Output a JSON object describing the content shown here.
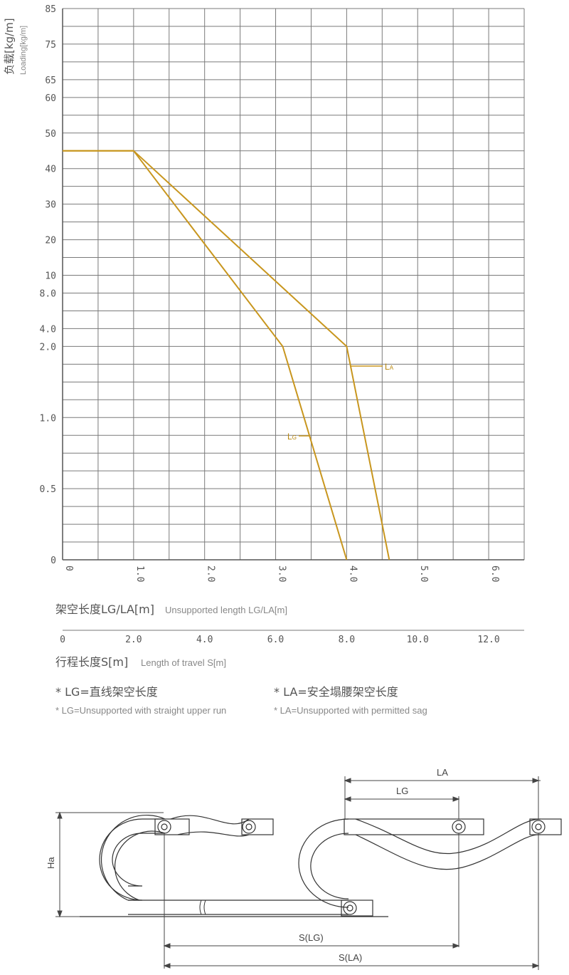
{
  "chart_data": {
    "type": "line",
    "ylabel_cn": "负载[kg/m]",
    "ylabel_en": "Loading[kg/m]",
    "yticks": [
      "0",
      "0.5",
      "1.0",
      "2.0",
      "4.0",
      "8.0",
      "10",
      "20",
      "30",
      "40",
      "50",
      "60",
      "65",
      "75",
      "85"
    ],
    "xticks_length": [
      "0",
      "1.0",
      "2.0",
      "3.0",
      "4.0",
      "5.0",
      "6.0"
    ],
    "xlabel_length_cn": "架空长度LG/LA[m]",
    "xlabel_length_en": "Unsupported length LG/LA[m]",
    "xticks_travel": [
      "0",
      "2.0",
      "4.0",
      "6.0",
      "8.0",
      "10.0",
      "12.0"
    ],
    "xlabel_travel_cn": "行程长度S[m]",
    "xlabel_travel_en": "Length of travel S[m]",
    "xlim": [
      0,
      6.5
    ],
    "series": [
      {
        "name": "LG",
        "color": "#c8961e",
        "points": [
          [
            0,
            45
          ],
          [
            1.0,
            45
          ],
          [
            3.1,
            2.0
          ],
          [
            4.0,
            0
          ]
        ]
      },
      {
        "name": "LA",
        "color": "#c8961e",
        "points": [
          [
            0,
            45
          ],
          [
            1.0,
            45
          ],
          [
            4.0,
            2.0
          ],
          [
            4.6,
            0
          ]
        ]
      }
    ]
  },
  "notes": {
    "lg_cn": "* LG=直线架空长度",
    "lg_en": "* LG=Unsupported with straight upper run",
    "la_cn": "* LA=安全塌腰架空长度",
    "la_en": "* LA=Unsupported with permitted sag"
  },
  "diagram": {
    "la": "LA",
    "lg": "LG",
    "ha": "Ha",
    "s_lg": "S(LG)",
    "s_la": "S(LA)"
  },
  "colors": {
    "grid": "#7a7a7a",
    "curve": "#c8961e",
    "axis": "#555555"
  }
}
